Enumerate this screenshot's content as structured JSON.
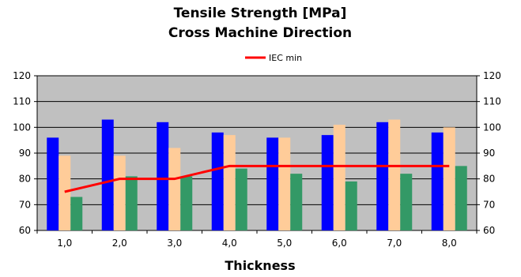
{
  "chart_data": {
    "type": "bar",
    "title": "Tensile Strength [MPa]",
    "subtitle": "Cross Machine Direction",
    "xlabel": "Thickness",
    "ylabel": "",
    "categories": [
      "1,0",
      "2,0",
      "3,0",
      "4,0",
      "5,0",
      "6,0",
      "7,0",
      "8,0"
    ],
    "ylim": [
      60,
      120
    ],
    "yticks": [
      60,
      70,
      80,
      90,
      100,
      110,
      120
    ],
    "grid": true,
    "legend_position": "top",
    "series": [
      {
        "values": [
          96,
          103,
          102,
          98,
          96,
          97,
          102,
          98
        ],
        "color": "#0000ff",
        "type": "bar"
      },
      {
        "values": [
          89,
          89,
          92,
          97,
          96,
          101,
          103,
          100
        ],
        "color": "#ffcc99",
        "type": "bar"
      },
      {
        "values": [
          73,
          81,
          81,
          84,
          82,
          79,
          82,
          85
        ],
        "color": "#339966",
        "type": "bar"
      },
      {
        "name": "IEC min",
        "values": [
          75,
          80,
          80,
          85,
          85,
          85,
          85,
          85
        ],
        "color": "#ff0000",
        "type": "line"
      }
    ],
    "plot_background": "#c0c0c0"
  }
}
